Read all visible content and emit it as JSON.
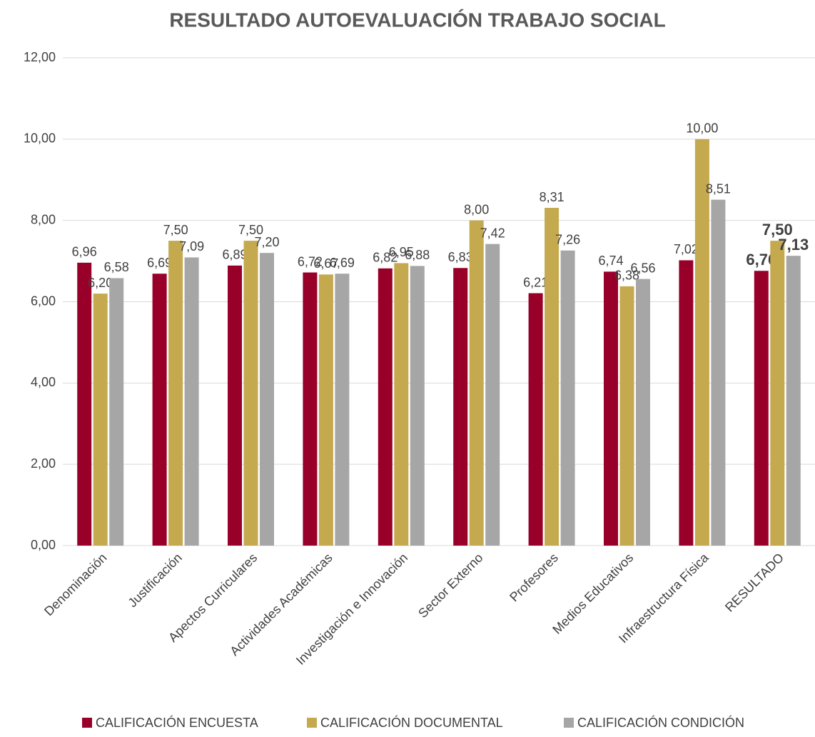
{
  "chart_data": {
    "type": "bar",
    "title": "RESULTADO AUTOEVALUACIÓN TRABAJO SOCIAL",
    "categories": [
      "Denominación",
      "Justificación",
      "Apectos Curriculares",
      "Actividades Académicas",
      "Investigación e Innovación",
      "Sector Externo",
      "Profesores",
      "Medios Educativos",
      "Infraestructura Física",
      "RESULTADO"
    ],
    "series": [
      {
        "name": "CALIFICACIÓN ENCUESTA",
        "color": "#990029",
        "values": [
          6.96,
          6.69,
          6.89,
          6.72,
          6.82,
          6.83,
          6.21,
          6.74,
          7.02,
          6.76
        ],
        "value_labels": [
          "6,96",
          "6,69",
          "6,89",
          "6,72",
          "6,82",
          "6,83",
          "6,21",
          "6,74",
          "7,02",
          "6,76"
        ]
      },
      {
        "name": "CALIFICACIÓN DOCUMENTAL",
        "color": "#c5a94f",
        "values": [
          6.2,
          7.5,
          7.5,
          6.67,
          6.95,
          8.0,
          8.31,
          6.38,
          10.0,
          7.5
        ],
        "value_labels": [
          "6,20",
          "7,50",
          "7,50",
          "6,67",
          "6,95",
          "8,00",
          "8,31",
          "6,38",
          "10,00",
          "7,50"
        ]
      },
      {
        "name": "CALIFICACIÓN CONDICIÓN",
        "color": "#a6a6a6",
        "values": [
          6.58,
          7.09,
          7.2,
          6.69,
          6.88,
          7.42,
          7.26,
          6.56,
          8.51,
          7.13
        ],
        "value_labels": [
          "6,58",
          "7,09",
          "7,20",
          "6,69",
          "6,88",
          "7,42",
          "7,26",
          "6,56",
          "8,51",
          "7,13"
        ]
      }
    ],
    "ylim": [
      0,
      12
    ],
    "yticks": [
      {
        "value": 0,
        "label": "0,00"
      },
      {
        "value": 2,
        "label": "2,00"
      },
      {
        "value": 4,
        "label": "4,00"
      },
      {
        "value": 6,
        "label": "6,00"
      },
      {
        "value": 8,
        "label": "8,00"
      },
      {
        "value": 10,
        "label": "10,00"
      },
      {
        "value": 12,
        "label": "12,00"
      }
    ],
    "grid": true,
    "legend": "bottom"
  }
}
